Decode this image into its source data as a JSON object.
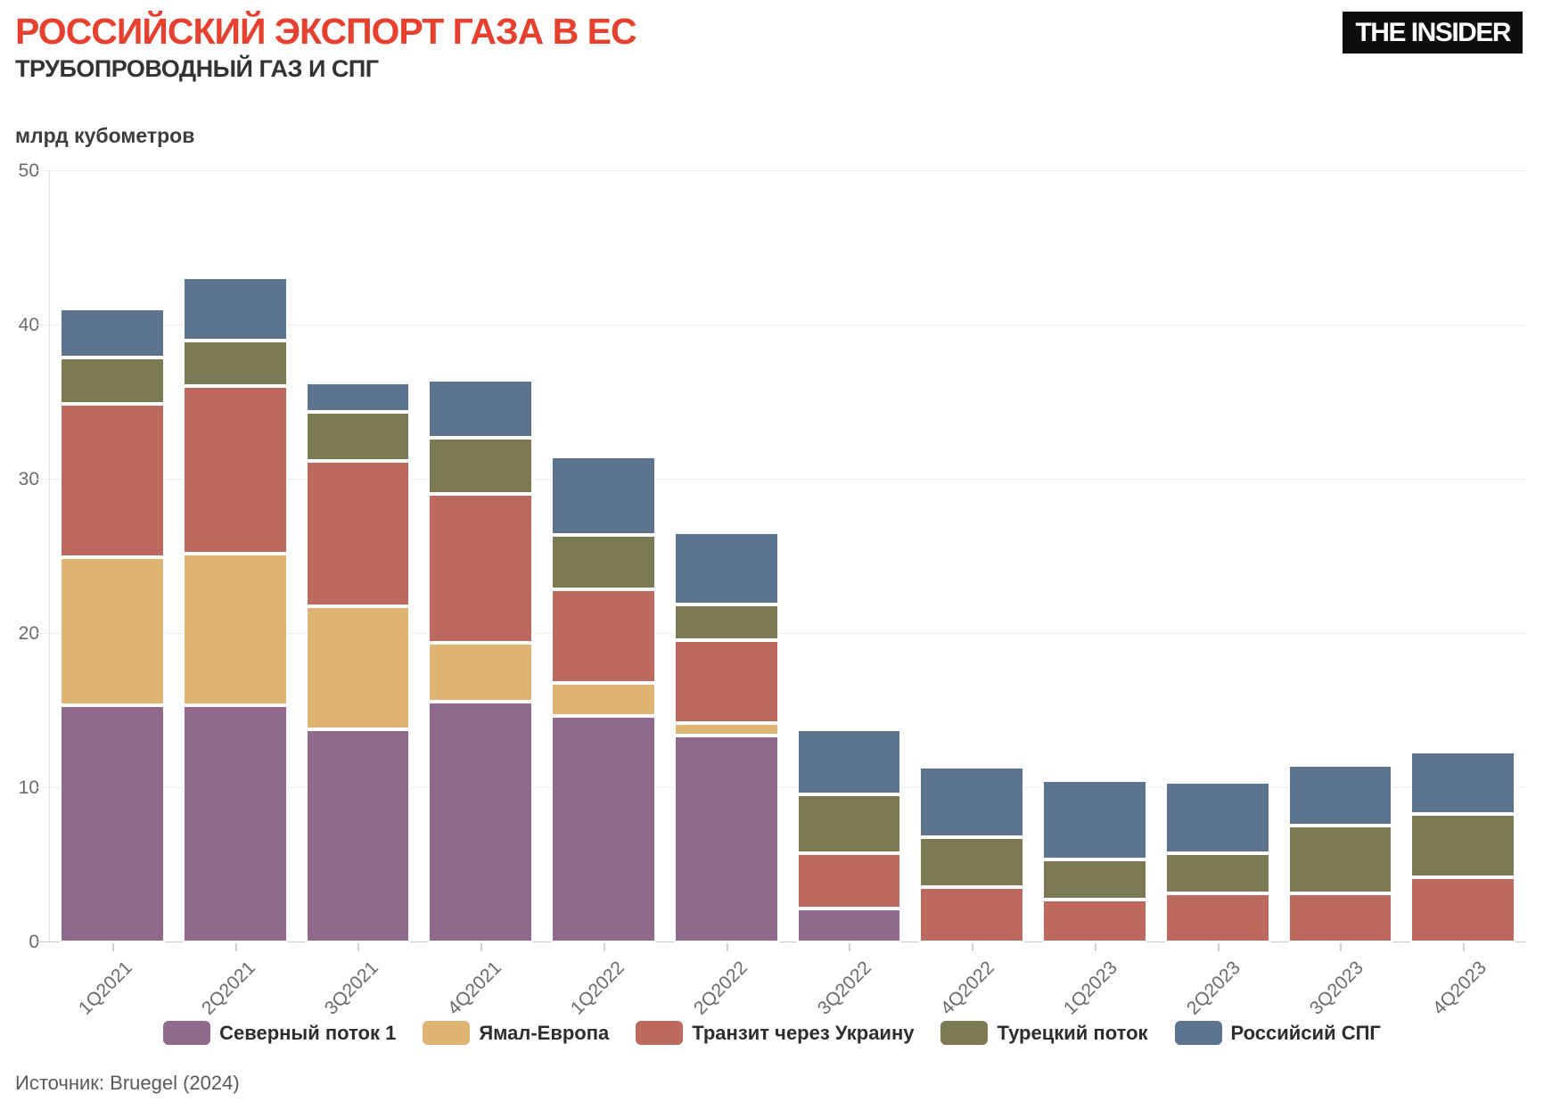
{
  "header": {
    "title": "РОССИЙСКИЙ ЭКСПОРТ ГАЗА В ЕС",
    "subtitle": "ТРУБОПРОВОДНЫЙ ГАЗ И СПГ",
    "logo": "THE INSIDER"
  },
  "source": "Источник: Bruegel (2024)",
  "colors": {
    "title_red": "#E8402E",
    "gridline": "#ececec",
    "baseline": "#c9c9c9",
    "axis_text": "#6b6b6b"
  },
  "chart_data": {
    "type": "bar",
    "stacked": true,
    "title": "РОССИЙСКИЙ ЭКСПОРТ ГАЗА В ЕС",
    "subtitle": "ТРУБОПРОВОДНЫЙ ГАЗ И СПГ",
    "ylabel": "млрд кубометров",
    "xlabel": "",
    "ylim": [
      0,
      50
    ],
    "yticks": [
      0,
      10,
      20,
      30,
      40,
      50
    ],
    "grid": true,
    "legend_position": "bottom",
    "categories": [
      "1Q2021",
      "2Q2021",
      "3Q2021",
      "4Q2021",
      "1Q2022",
      "2Q2022",
      "3Q2022",
      "4Q2022",
      "1Q2023",
      "2Q2023",
      "3Q2023",
      "4Q2023"
    ],
    "series": [
      {
        "name": "Северный поток 1",
        "color": "#906A8A",
        "values": [
          15.4,
          15.4,
          13.8,
          15.6,
          14.7,
          13.4,
          2.2,
          0,
          0,
          0,
          0,
          0
        ]
      },
      {
        "name": "Ямал-Европа",
        "color": "#DFB475",
        "values": [
          9.6,
          9.8,
          8.0,
          3.8,
          2.1,
          0.8,
          0,
          0,
          0,
          0,
          0,
          0
        ]
      },
      {
        "name": "Транзит через Украину",
        "color": "#BC6A5F",
        "values": [
          9.9,
          10.9,
          9.4,
          9.7,
          6.1,
          5.4,
          3.6,
          3.6,
          2.8,
          3.2,
          3.2,
          4.2
        ]
      },
      {
        "name": "Турецкий поток",
        "color": "#7C7A55",
        "values": [
          3.0,
          2.9,
          3.2,
          3.6,
          3.5,
          2.3,
          3.8,
          3.2,
          2.6,
          2.6,
          4.4,
          4.1
        ]
      },
      {
        "name": "Российсий СПГ",
        "color": "#5C748E",
        "values": [
          3.2,
          4.1,
          1.9,
          3.8,
          5.1,
          4.7,
          4.2,
          4.6,
          5.1,
          4.6,
          3.9,
          4.1
        ]
      }
    ],
    "totals": [
      41.1,
      43.1,
      36.3,
      36.5,
      31.5,
      26.6,
      13.8,
      11.4,
      10.5,
      10.4,
      11.5,
      12.4
    ]
  }
}
